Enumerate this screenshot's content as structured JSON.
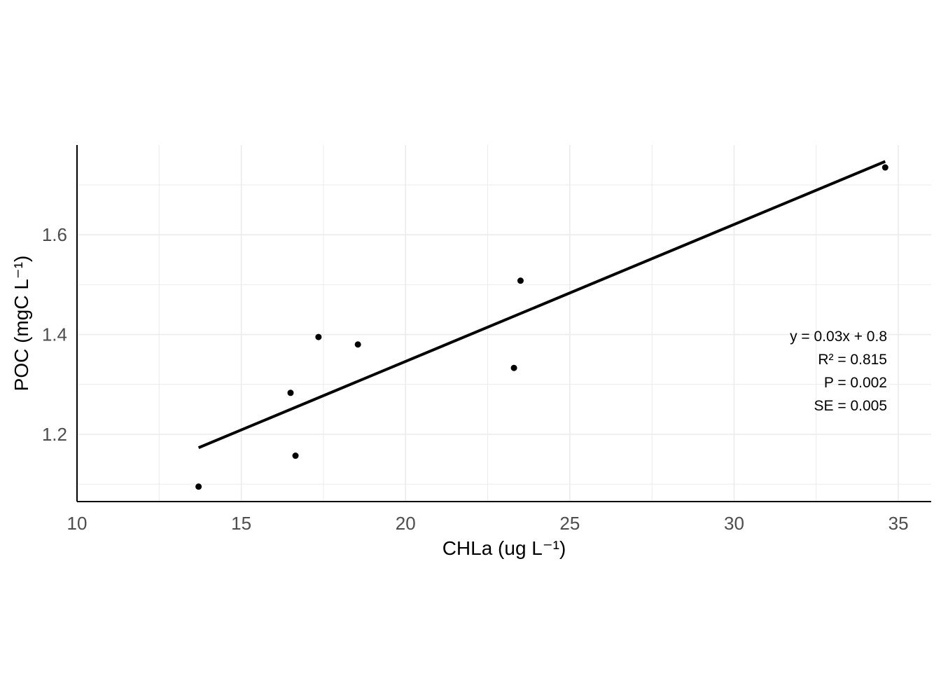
{
  "chart_data": {
    "type": "scatter",
    "title": "",
    "xlabel": "CHLa (ug L⁻¹)",
    "ylabel": "POC (mgC L⁻¹)",
    "xlim": [
      10,
      36
    ],
    "ylim": [
      1.065,
      1.78
    ],
    "x_ticks": [
      10,
      15,
      20,
      25,
      30,
      35
    ],
    "x_tick_labels": [
      "10",
      "15",
      "20",
      "25",
      "30",
      "35"
    ],
    "y_ticks": [
      1.2,
      1.4,
      1.6
    ],
    "y_tick_labels": [
      "1.2",
      "1.4",
      "1.6"
    ],
    "x_minor_gridlines": [
      12.5,
      17.5,
      22.5,
      27.5,
      32.5
    ],
    "y_minor_gridlines": [
      1.1,
      1.3,
      1.5,
      1.7
    ],
    "grid": true,
    "series": [
      {
        "points": [
          {
            "x": 13.7,
            "y": 1.095
          },
          {
            "x": 16.5,
            "y": 1.283
          },
          {
            "x": 16.65,
            "y": 1.157
          },
          {
            "x": 17.35,
            "y": 1.395
          },
          {
            "x": 18.55,
            "y": 1.38
          },
          {
            "x": 23.3,
            "y": 1.333
          },
          {
            "x": 23.5,
            "y": 1.508
          },
          {
            "x": 34.6,
            "y": 1.735
          }
        ]
      }
    ],
    "fit_line": {
      "x_range": [
        13.7,
        34.6
      ],
      "y_range": [
        1.173,
        1.747
      ]
    },
    "annotations": [
      "y = 0.03x + 0.8",
      "R² = 0.815",
      "P = 0.002",
      "SE = 0.005"
    ],
    "colors": {
      "points": "#000000",
      "fit_line": "#000000",
      "grid": "#ebebeb",
      "tick_text": "#4d4d4d",
      "axis": "#000000"
    }
  }
}
